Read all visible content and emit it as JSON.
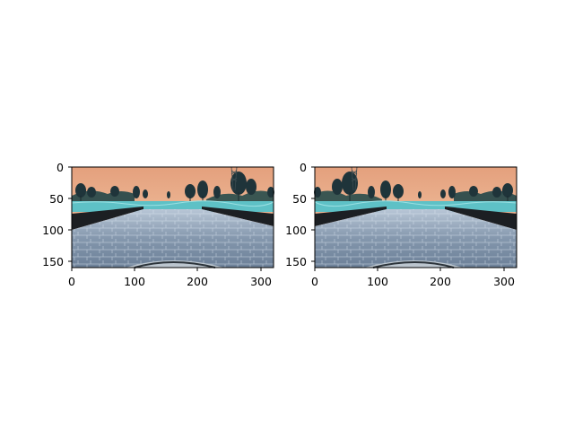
{
  "figure": {
    "panels": [
      {
        "id": "left",
        "image_description": "road scene camera frame",
        "xticks": [
          "0",
          "100",
          "200",
          "300"
        ],
        "yticks": [
          "0",
          "50",
          "100",
          "150"
        ]
      },
      {
        "id": "right",
        "image_description": "horizontally flipped road scene camera frame",
        "xticks": [
          "0",
          "100",
          "200",
          "300"
        ],
        "yticks": [
          "0",
          "50",
          "100",
          "150"
        ]
      }
    ]
  },
  "colors": {
    "sky_top": "#e5a27e",
    "sky_bottom": "#f3c6a0",
    "water": "#5fc3c8",
    "road": "#8ea2b8",
    "road_dark": "#5b6e84",
    "trees": "#20383f",
    "barrier": "#1b1e22"
  }
}
